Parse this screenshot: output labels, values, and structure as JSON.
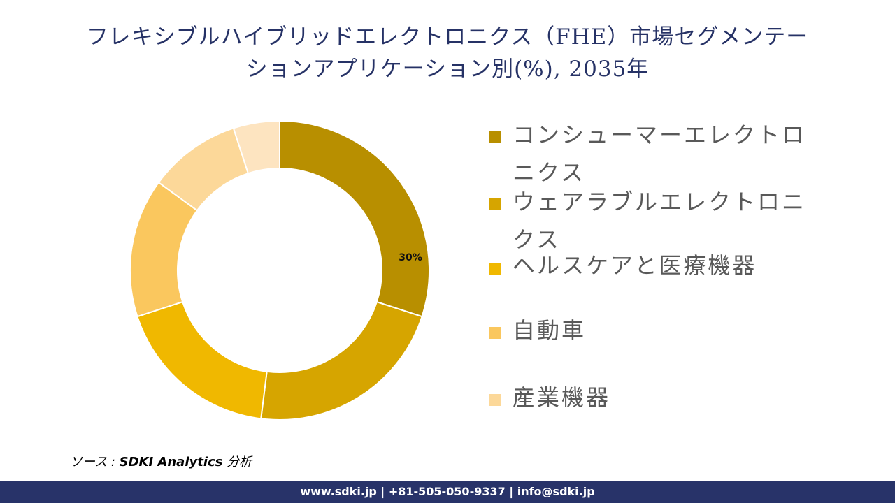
{
  "title_line1": "フレキシブルハイブリッドエレクトロニクス（FHE）市場セグメンテー",
  "title_line2": "ションアプリケーション別(%), 2035年",
  "chart_data": {
    "type": "donut",
    "title": "フレキシブルハイブリッドエレクトロニクス（FHE）市場セグメンテーションアプリケーション別(%), 2035年",
    "categories": [
      "コンシューマーエレクトロニクス",
      "ウェアラブルエレクトロニクス",
      "ヘルスケアと医療機器",
      "自動車",
      "産業機器",
      ""
    ],
    "values": [
      30,
      22,
      18,
      15,
      10,
      5
    ],
    "colors": [
      "#B88F00",
      "#D6A500",
      "#F0B800",
      "#FAC75E",
      "#FCD899",
      "#FDE4C0"
    ],
    "data_labels": [
      "30%",
      "",
      "",
      "",
      "",
      ""
    ],
    "legend_position": "right",
    "unit": "%"
  },
  "legend": [
    {
      "label": "コンシューマーエレクトロ\nニクス",
      "color": "#B88F00"
    },
    {
      "label": "ウェアラブルエレクトロニ\nクス",
      "color": "#D6A500"
    },
    {
      "label": "ヘルスケアと医療機器",
      "color": "#F0B800"
    },
    {
      "label": "自動車",
      "color": "#FAC75E"
    },
    {
      "label": "産業機器",
      "color": "#FCD899"
    }
  ],
  "source": {
    "prefix": "ソース : ",
    "bold": "SDKI Analytics",
    "suffix": " 分析"
  },
  "footer": "www.sdki.jp | +81-505-050-9337 | info@sdki.jp"
}
